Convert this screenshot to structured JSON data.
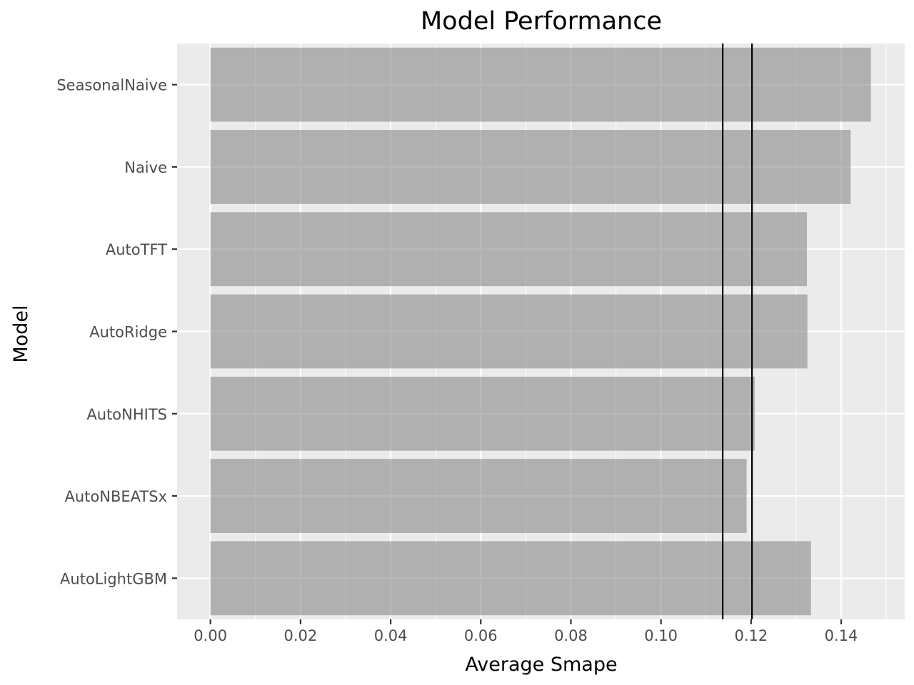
{
  "chart_data": {
    "type": "bar",
    "orientation": "horizontal",
    "title": "Model Performance",
    "xlabel": "Average Smape",
    "ylabel": "Model",
    "categories": [
      "SeasonalNaive",
      "Naive",
      "AutoTFT",
      "AutoRidge",
      "AutoNHITS",
      "AutoNBEATSx",
      "AutoLightGBM"
    ],
    "values": [
      0.1466,
      0.1421,
      0.1324,
      0.1325,
      0.1208,
      0.119,
      0.1333
    ],
    "xlim": [
      -0.0074,
      0.1541
    ],
    "xticks": [
      {
        "value": 0.0,
        "label": "0.00"
      },
      {
        "value": 0.02,
        "label": "0.02"
      },
      {
        "value": 0.04,
        "label": "0.04"
      },
      {
        "value": 0.06,
        "label": "0.06"
      },
      {
        "value": 0.08,
        "label": "0.08"
      },
      {
        "value": 0.1,
        "label": "0.10"
      },
      {
        "value": 0.12,
        "label": "0.12"
      },
      {
        "value": 0.14,
        "label": "0.14"
      }
    ],
    "reference_lines": [
      0.1137,
      0.1202
    ],
    "grid": true,
    "legend": "none",
    "colors": {
      "panel_background": "#ebebeb",
      "grid": "#ffffff",
      "bar_fill": "#b0b0b0",
      "reference_line": "#000000",
      "tick_label": "#4d4d4d",
      "tick_mark": "#333333"
    }
  }
}
